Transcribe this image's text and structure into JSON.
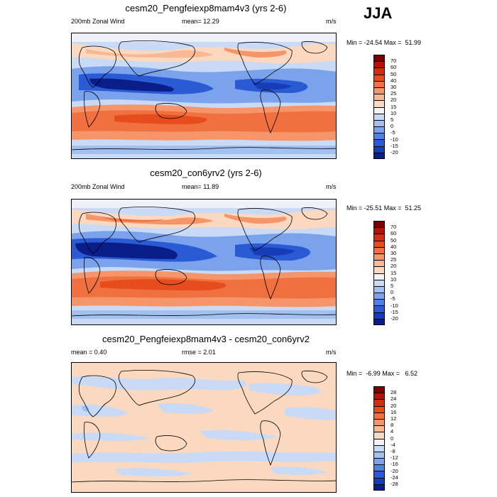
{
  "season": "JJA",
  "panels": [
    {
      "title": "cesm20_Pengfeiexp8mam4v3 (yrs 2-6)",
      "left_label": "200mb Zonal Wind",
      "center_label": "mean=  12.29",
      "units": "m/s",
      "minmax": "Min = -24.54 Max =  51.99",
      "colorbar_labels": [
        "70",
        "60",
        "50",
        "40",
        "30",
        "25",
        "20",
        "15",
        "10",
        "5",
        "0",
        "-5",
        "-10",
        "-15",
        "-20"
      ],
      "colorbar_colors": [
        "#7a0000",
        "#b01505",
        "#d42d0c",
        "#e74c1c",
        "#f0703f",
        "#f59569",
        "#f8b894",
        "#fad9c0",
        "#f3f3f3",
        "#c8daf5",
        "#a2c0f0",
        "#7aa3ec",
        "#4f80e4",
        "#2a5ad4",
        "#173cb8",
        "#0a1e8a"
      ]
    },
    {
      "title": "cesm20_con6yrv2 (yrs 2-6)",
      "left_label": "200mb Zonal Wind",
      "center_label": "mean=  11.89",
      "units": "m/s",
      "minmax": "Min = -25.51 Max =  51.25",
      "colorbar_labels": [
        "70",
        "60",
        "50",
        "40",
        "30",
        "25",
        "20",
        "15",
        "10",
        "5",
        "0",
        "-5",
        "-10",
        "-15",
        "-20"
      ],
      "colorbar_colors": [
        "#7a0000",
        "#b01505",
        "#d42d0c",
        "#e74c1c",
        "#f0703f",
        "#f59569",
        "#f8b894",
        "#fad9c0",
        "#f3f3f3",
        "#c8daf5",
        "#a2c0f0",
        "#7aa3ec",
        "#4f80e4",
        "#2a5ad4",
        "#173cb8",
        "#0a1e8a"
      ]
    },
    {
      "title": "cesm20_Pengfeiexp8mam4v3 - cesm20_con6yrv2",
      "left_label": "mean =   0.40",
      "center_label": "rmse =  2.01",
      "units": "m/s",
      "minmax": "Min =  -6.99 Max =   6.52",
      "colorbar_labels": [
        "28",
        "24",
        "20",
        "16",
        "12",
        "8",
        "4",
        "0",
        "-4",
        "-8",
        "-12",
        "-16",
        "-20",
        "-24",
        "-28"
      ],
      "colorbar_colors": [
        "#7a0000",
        "#b01505",
        "#d42d0c",
        "#e74c1c",
        "#f0703f",
        "#f59569",
        "#f8b894",
        "#fad9c0",
        "#f3f3f3",
        "#c8daf5",
        "#a2c0f0",
        "#7aa3ec",
        "#4f80e4",
        "#2a5ad4",
        "#173cb8",
        "#0a1e8a"
      ]
    }
  ]
}
